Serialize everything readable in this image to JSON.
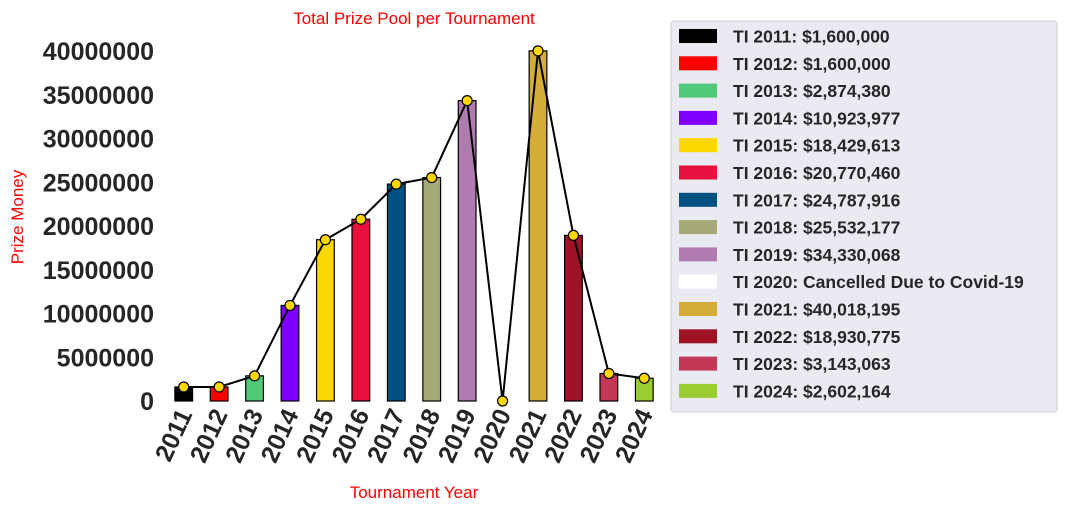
{
  "chart_data": {
    "type": "bar",
    "title": "Total Prize Pool per Tournament",
    "xlabel": "Tournament Year",
    "ylabel": "Prize Money",
    "categories": [
      "2011",
      "2012",
      "2013",
      "2014",
      "2015",
      "2016",
      "2017",
      "2018",
      "2019",
      "2020",
      "2021",
      "2022",
      "2023",
      "2024"
    ],
    "values": [
      1600000,
      1600000,
      2874380,
      10923977,
      18429613,
      20770460,
      24787916,
      25532177,
      34330068,
      0,
      40018195,
      18930775,
      3143063,
      2602164
    ],
    "colors": [
      "#000000",
      "#ff0000",
      "#50c878",
      "#8000ff",
      "#ffd700",
      "#e8103c",
      "#005082",
      "#a7a977",
      "#b07caf",
      "#ffffff",
      "#d4ac37",
      "#9e1426",
      "#c33856",
      "#9acd32"
    ],
    "overlay_line": {
      "color": "#000000",
      "marker_color": "#ffd700"
    },
    "ylim": [
      0,
      40000000
    ],
    "yticks": [
      "0",
      "5000000",
      "10000000",
      "15000000",
      "20000000",
      "25000000",
      "30000000",
      "35000000",
      "40000000"
    ],
    "grid": false,
    "legend_position": "right-outside",
    "legend": [
      "TI 2011: $1,600,000",
      "TI 2012: $1,600,000",
      "TI 2013: $2,874,380",
      "TI 2014: $10,923,977",
      "TI 2015: $18,429,613",
      "TI 2016: $20,770,460",
      "TI 2017: $24,787,916",
      "TI 2018: $25,532,177",
      "TI 2019: $34,330,068",
      "TI 2020: Cancelled Due to Covid-19",
      "TI 2021: $40,018,195",
      "TI 2022: $18,930,775",
      "TI 2023: $3,143,063",
      "TI 2024: $2,602,164"
    ]
  }
}
